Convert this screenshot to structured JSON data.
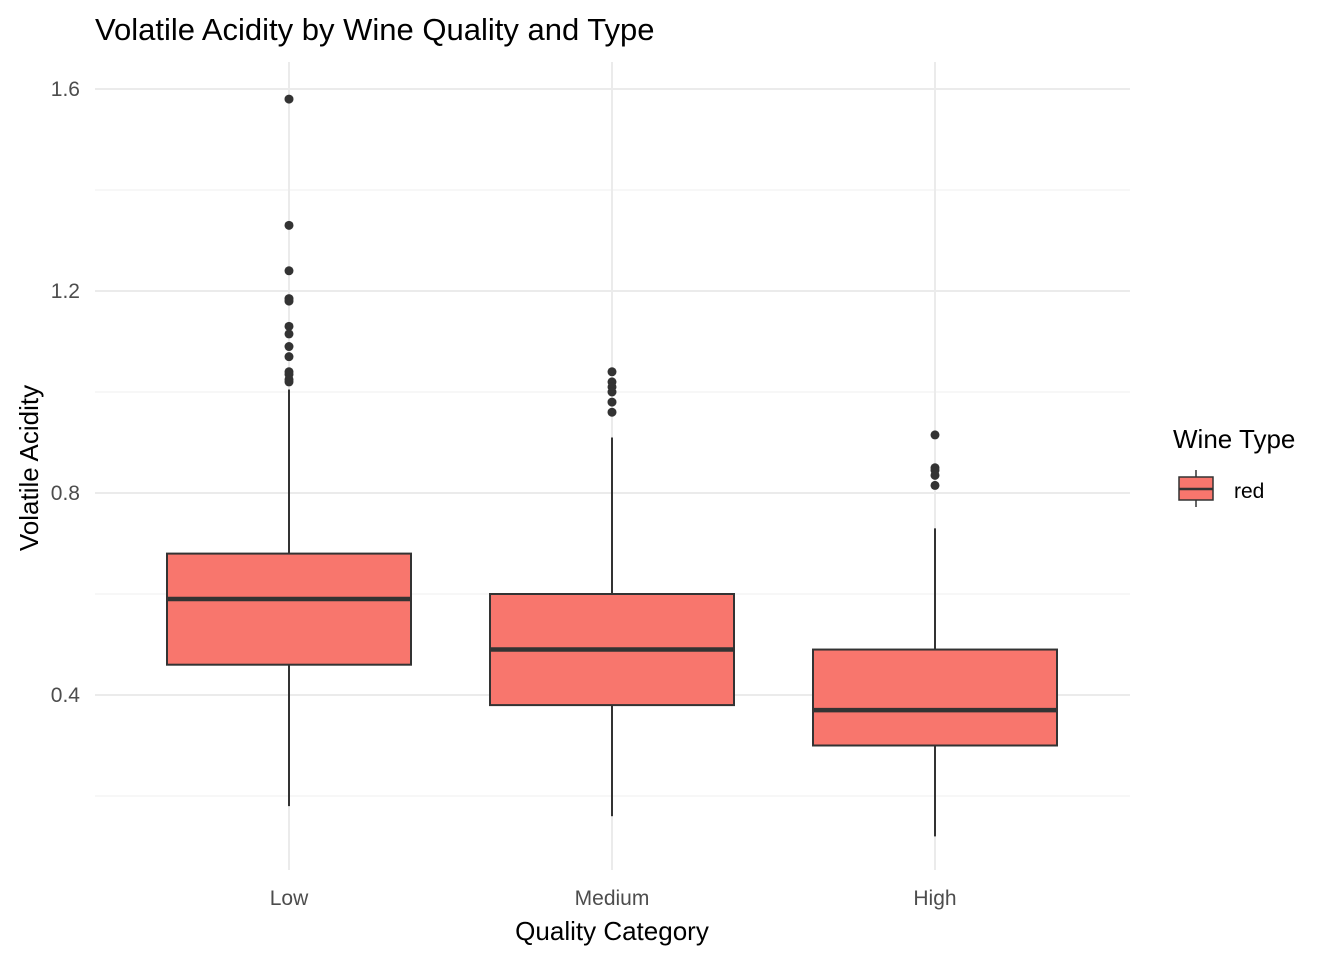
{
  "chart_data": {
    "type": "box",
    "title": "Volatile Acidity by Wine Quality and Type",
    "xlabel": "Quality Category",
    "ylabel": "Volatile Acidity",
    "categories": [
      "Low",
      "Medium",
      "High"
    ],
    "ylim": [
      0.12,
      1.65
    ],
    "yticks": [
      0.4,
      0.8,
      1.2,
      1.6
    ],
    "ytick_labels": [
      "0.4",
      "0.8",
      "1.2",
      "1.6"
    ],
    "grid": true,
    "legend": {
      "title": "Wine Type",
      "position": "right",
      "entries": [
        "red"
      ]
    },
    "series": [
      {
        "name": "red",
        "color": "#F8766D",
        "boxes": [
          {
            "category": "Low",
            "whisker_low": 0.18,
            "q1": 0.46,
            "median": 0.59,
            "q3": 0.68,
            "whisker_high": 1.005,
            "outliers": [
              1.58,
              1.33,
              1.24,
              1.185,
              1.18,
              1.13,
              1.115,
              1.09,
              1.07,
              1.04,
              1.035,
              1.025,
              1.02
            ]
          },
          {
            "category": "Medium",
            "whisker_low": 0.16,
            "q1": 0.38,
            "median": 0.49,
            "q3": 0.6,
            "whisker_high": 0.91,
            "outliers": [
              1.04,
              1.02,
              1.01,
              1.0,
              0.98,
              0.96
            ]
          },
          {
            "category": "High",
            "whisker_low": 0.12,
            "q1": 0.3,
            "median": 0.37,
            "q3": 0.49,
            "whisker_high": 0.73,
            "outliers": [
              0.915,
              0.85,
              0.845,
              0.835,
              0.815
            ]
          }
        ]
      }
    ]
  }
}
